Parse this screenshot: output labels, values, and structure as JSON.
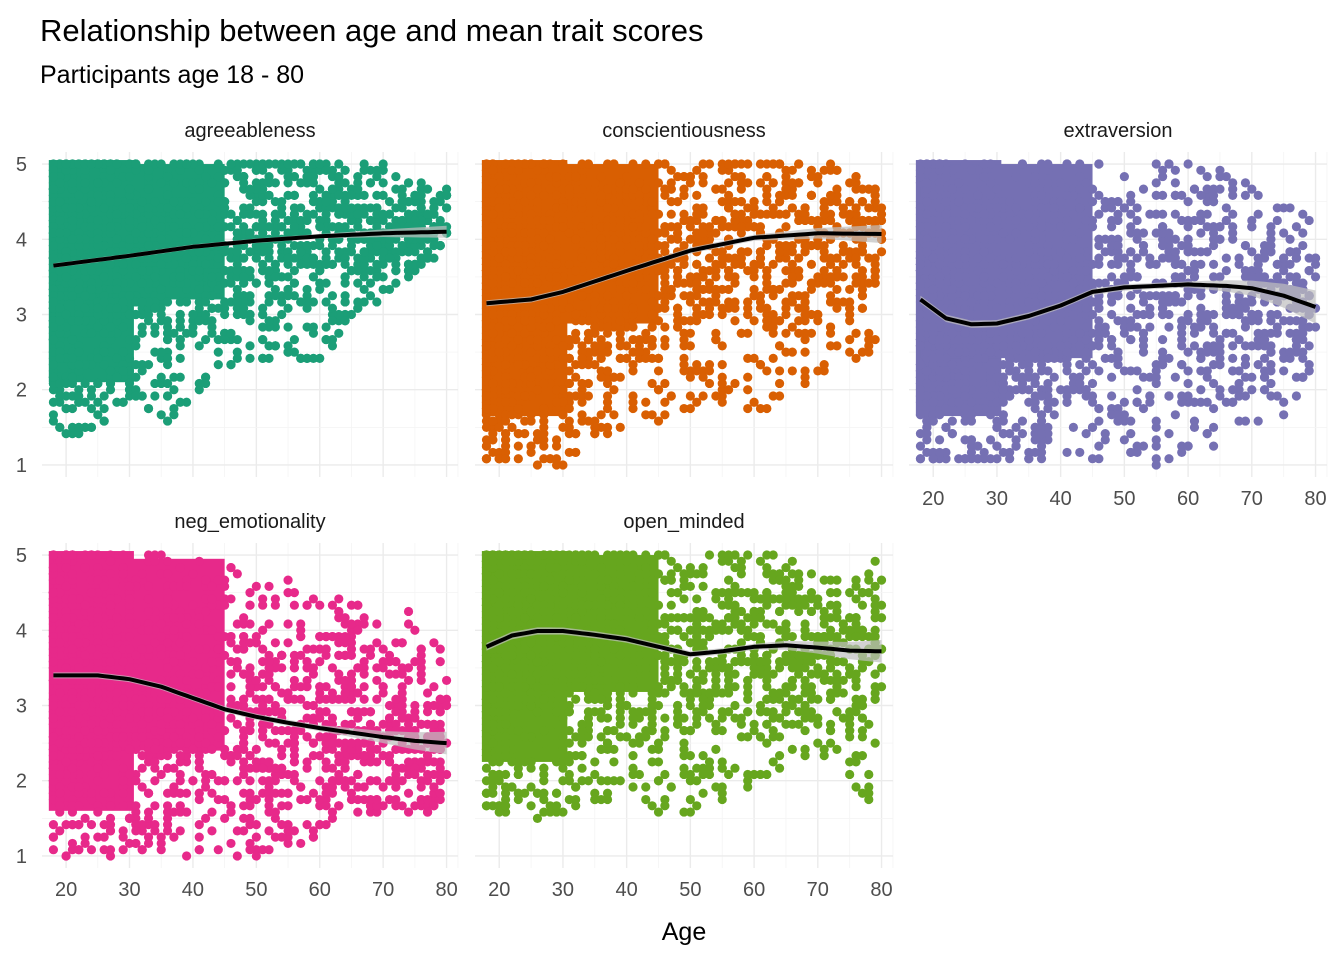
{
  "chart_data": {
    "type": "scatter",
    "title": "Relationship between age and mean trait scores",
    "subtitle": "Participants age 18 - 80",
    "xlabel": "Age",
    "ylabel": "",
    "xlim": [
      18,
      80
    ],
    "ylim": [
      1,
      5
    ],
    "x_ticks": [
      20,
      30,
      40,
      50,
      60,
      70,
      80
    ],
    "y_ticks": [
      1,
      2,
      3,
      4,
      5
    ],
    "grid": true,
    "legend": "none",
    "panels": [
      {
        "name": "agreeableness",
        "color": "#1b9e77",
        "point_range": {
          "min_y": [
            [
              18,
              1.5
            ],
            [
              19,
              1.25
            ],
            [
              30,
              1.7
            ],
            [
              35,
              1.5
            ],
            [
              45,
              2.3
            ],
            [
              60,
              2.35
            ],
            [
              70,
              3.3
            ],
            [
              78,
              3.7
            ],
            [
              80,
              4.1
            ]
          ],
          "max_y": [
            [
              18,
              5
            ],
            [
              70,
              5
            ],
            [
              75,
              4.8
            ],
            [
              80,
              4.7
            ]
          ]
        },
        "trend": [
          [
            18,
            3.65
          ],
          [
            30,
            3.78
          ],
          [
            40,
            3.9
          ],
          [
            50,
            3.98
          ],
          [
            60,
            4.04
          ],
          [
            70,
            4.08
          ],
          [
            80,
            4.1
          ]
        ],
        "ci_half_width": [
          [
            18,
            0.03
          ],
          [
            60,
            0.03
          ],
          [
            70,
            0.05
          ],
          [
            80,
            0.08
          ]
        ]
      },
      {
        "name": "conscientiousness",
        "color": "#d95f02",
        "point_range": {
          "min_y": [
            [
              18,
              1.05
            ],
            [
              22,
              1.05
            ],
            [
              31,
              1.0
            ],
            [
              36,
              1.4
            ],
            [
              45,
              1.6
            ],
            [
              52,
              1.7
            ],
            [
              62,
              1.75
            ],
            [
              70,
              2.2
            ],
            [
              79,
              2.5
            ],
            [
              80,
              3.7
            ]
          ],
          "max_y": [
            [
              18,
              5
            ],
            [
              72,
              5
            ],
            [
              76,
              4.8
            ],
            [
              80,
              4.6
            ]
          ]
        },
        "trend": [
          [
            18,
            3.15
          ],
          [
            25,
            3.2
          ],
          [
            30,
            3.3
          ],
          [
            40,
            3.58
          ],
          [
            50,
            3.85
          ],
          [
            60,
            4.02
          ],
          [
            70,
            4.08
          ],
          [
            80,
            4.07
          ]
        ],
        "ci_half_width": [
          [
            18,
            0.04
          ],
          [
            60,
            0.04
          ],
          [
            70,
            0.07
          ],
          [
            80,
            0.12
          ]
        ]
      },
      {
        "name": "extraversion",
        "color": "#7570b3",
        "point_range": {
          "min_y": [
            [
              18,
              1.05
            ],
            [
              30,
              1.05
            ],
            [
              45,
              1.05
            ],
            [
              57,
              1.0
            ],
            [
              70,
              1.5
            ],
            [
              78,
              1.8
            ],
            [
              80,
              2.35
            ]
          ],
          "max_y": [
            [
              18,
              5
            ],
            [
              35,
              5
            ],
            [
              58,
              5
            ],
            [
              68,
              4.85
            ],
            [
              75,
              4.5
            ],
            [
              80,
              4.4
            ]
          ]
        },
        "trend": [
          [
            18,
            3.2
          ],
          [
            22,
            2.95
          ],
          [
            26,
            2.87
          ],
          [
            30,
            2.88
          ],
          [
            35,
            2.98
          ],
          [
            40,
            3.12
          ],
          [
            45,
            3.3
          ],
          [
            50,
            3.36
          ],
          [
            60,
            3.4
          ],
          [
            66,
            3.38
          ],
          [
            70,
            3.35
          ],
          [
            75,
            3.25
          ],
          [
            80,
            3.1
          ]
        ],
        "ci_half_width": [
          [
            18,
            0.05
          ],
          [
            60,
            0.04
          ],
          [
            70,
            0.1
          ],
          [
            80,
            0.22
          ]
        ]
      },
      {
        "name": "neg_emotionality",
        "color": "#e7298a",
        "point_range": {
          "min_y": [
            [
              18,
              1.0
            ],
            [
              40,
              1.0
            ],
            [
              56,
              1.0
            ],
            [
              62,
              1.5
            ],
            [
              70,
              1.6
            ],
            [
              78,
              1.6
            ],
            [
              80,
              1.9
            ]
          ],
          "max_y": [
            [
              18,
              5
            ],
            [
              35,
              5
            ],
            [
              50,
              4.85
            ],
            [
              60,
              4.6
            ],
            [
              70,
              4.2
            ],
            [
              75,
              4.35
            ],
            [
              80,
              3.6
            ]
          ]
        },
        "trend": [
          [
            18,
            3.4
          ],
          [
            25,
            3.4
          ],
          [
            30,
            3.35
          ],
          [
            35,
            3.25
          ],
          [
            40,
            3.1
          ],
          [
            45,
            2.95
          ],
          [
            50,
            2.85
          ],
          [
            55,
            2.77
          ],
          [
            60,
            2.7
          ],
          [
            65,
            2.64
          ],
          [
            70,
            2.58
          ],
          [
            75,
            2.53
          ],
          [
            80,
            2.5
          ]
        ],
        "ci_half_width": [
          [
            18,
            0.04
          ],
          [
            60,
            0.04
          ],
          [
            70,
            0.08
          ],
          [
            80,
            0.15
          ]
        ]
      },
      {
        "name": "open_minded",
        "color": "#66a61e",
        "point_range": {
          "min_y": [
            [
              18,
              1.65
            ],
            [
              25,
              1.5
            ],
            [
              38,
              1.75
            ],
            [
              50,
              1.5
            ],
            [
              60,
              2.0
            ],
            [
              70,
              2.4
            ],
            [
              78,
              1.65
            ],
            [
              80,
              3.0
            ]
          ],
          "max_y": [
            [
              18,
              5
            ],
            [
              65,
              5
            ],
            [
              75,
              4.6
            ],
            [
              79,
              5.0
            ],
            [
              80,
              5.0
            ]
          ]
        },
        "trend": [
          [
            18,
            3.78
          ],
          [
            22,
            3.93
          ],
          [
            26,
            3.99
          ],
          [
            30,
            3.99
          ],
          [
            35,
            3.94
          ],
          [
            40,
            3.88
          ],
          [
            45,
            3.78
          ],
          [
            50,
            3.68
          ],
          [
            55,
            3.72
          ],
          [
            60,
            3.78
          ],
          [
            65,
            3.8
          ],
          [
            70,
            3.77
          ],
          [
            75,
            3.73
          ],
          [
            80,
            3.72
          ]
        ],
        "ci_half_width": [
          [
            18,
            0.05
          ],
          [
            60,
            0.04
          ],
          [
            70,
            0.08
          ],
          [
            80,
            0.15
          ]
        ]
      }
    ]
  }
}
